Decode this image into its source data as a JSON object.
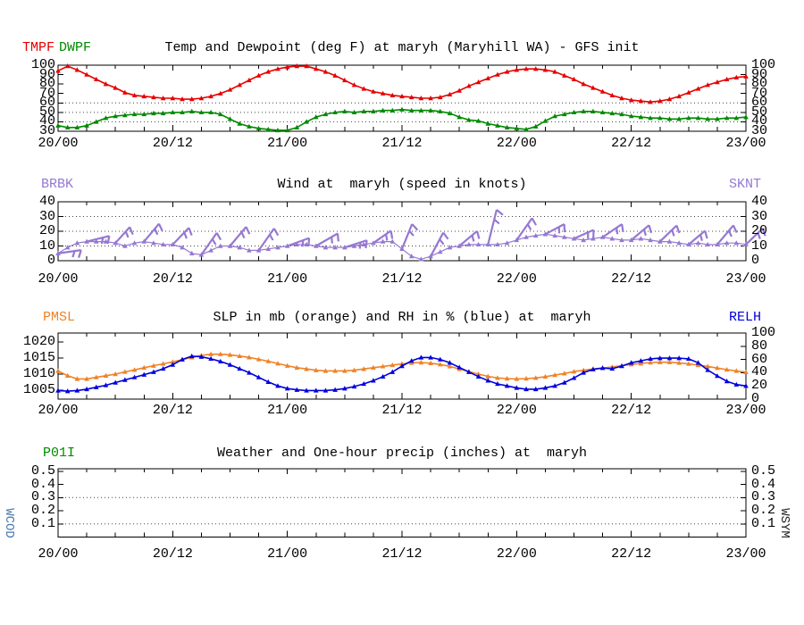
{
  "colors": {
    "tmpf": "#e60000",
    "dwpf": "#008a00",
    "wind": "#9678d2",
    "pmsl": "#f08228",
    "relh": "#0000dd",
    "wcod": "#4477aa",
    "wsym": "#222222",
    "axis": "#000000"
  },
  "x_axis": {
    "labels": [
      "20/00",
      "20/12",
      "21/00",
      "21/12",
      "22/00",
      "22/12",
      "23/00"
    ],
    "hours_total": 72,
    "minor_tick_hours": 3,
    "points_every_hours": 1
  },
  "side_labels": {
    "left": "WCOD",
    "right": "WSYM"
  },
  "chart_data": [
    {
      "type": "line",
      "panel": "temp_dew",
      "title": "Temp and Dewpoint (deg F) at maryh (Maryhill WA) - GFS init",
      "ylim": [
        30,
        100
      ],
      "yticks": [
        100,
        90,
        80,
        70,
        60,
        50,
        40,
        30
      ],
      "grid_dotted_at": [
        60,
        50,
        40
      ],
      "series": [
        {
          "name": "TMPF",
          "color_key": "tmpf",
          "values": [
            94,
            99,
            95,
            90,
            85,
            80,
            76,
            71,
            68,
            67,
            66,
            65,
            65,
            64,
            64,
            65,
            67,
            70,
            74,
            79,
            84,
            89,
            93,
            96,
            98,
            99,
            99,
            96,
            93,
            89,
            84,
            79,
            75,
            72,
            70,
            68,
            67,
            66,
            65,
            65,
            66,
            69,
            73,
            78,
            82,
            86,
            90,
            93,
            95,
            96,
            96,
            95,
            93,
            89,
            85,
            80,
            76,
            72,
            68,
            65,
            63,
            62,
            61,
            62,
            64,
            67,
            71,
            75,
            79,
            82,
            85,
            87,
            88
          ]
        },
        {
          "name": "DWPF",
          "color_key": "dwpf",
          "values": [
            36,
            34,
            34,
            36,
            40,
            44,
            46,
            47,
            48,
            48,
            49,
            49,
            50,
            50,
            51,
            50,
            50,
            48,
            43,
            38,
            35,
            33,
            32,
            31,
            31,
            34,
            40,
            45,
            48,
            50,
            51,
            50,
            51,
            51,
            52,
            52,
            53,
            52,
            52,
            52,
            51,
            49,
            45,
            42,
            41,
            38,
            36,
            34,
            33,
            32,
            35,
            41,
            46,
            48,
            50,
            51,
            51,
            50,
            49,
            48,
            46,
            45,
            44,
            44,
            43,
            43,
            44,
            44,
            43,
            43,
            44,
            44,
            45
          ]
        }
      ]
    },
    {
      "type": "line",
      "panel": "wind",
      "title": "Wind at  maryh (speed in knots)",
      "left_label": "BRBK",
      "right_label": "SKNT",
      "ylim": [
        0,
        40
      ],
      "yticks": [
        40,
        30,
        20,
        10,
        0
      ],
      "grid_dotted_at": [
        30,
        20,
        10
      ],
      "series": [
        {
          "name": "SKNT",
          "color_key": "wind",
          "values": [
            5,
            9,
            12,
            13,
            13,
            13,
            12,
            10,
            12,
            13,
            12,
            11,
            11,
            9,
            5,
            4,
            7,
            10,
            10,
            9,
            7,
            7,
            8,
            9,
            10,
            11,
            11,
            10,
            9,
            9,
            9,
            10,
            11,
            12,
            13,
            13,
            8,
            3,
            1,
            3,
            6,
            9,
            10,
            11,
            11,
            11,
            11,
            12,
            14,
            16,
            17,
            18,
            17,
            16,
            15,
            14,
            15,
            16,
            15,
            14,
            14,
            15,
            14,
            13,
            13,
            12,
            11,
            12,
            11,
            11,
            12,
            12,
            11
          ]
        }
      ],
      "barbs": [
        {
          "h": 0,
          "len": 26,
          "ang": 8
        },
        {
          "h": 3,
          "len": 26,
          "ang": 14
        },
        {
          "h": 6,
          "len": 24,
          "ang": 48
        },
        {
          "h": 9,
          "len": 26,
          "ang": 50
        },
        {
          "h": 12,
          "len": 26,
          "ang": 46
        },
        {
          "h": 15,
          "len": 30,
          "ang": 55
        },
        {
          "h": 18,
          "len": 28,
          "ang": 50
        },
        {
          "h": 21,
          "len": 30,
          "ang": 55
        },
        {
          "h": 24,
          "len": 26,
          "ang": 20
        },
        {
          "h": 27,
          "len": 28,
          "ang": 30
        },
        {
          "h": 30,
          "len": 26,
          "ang": 18
        },
        {
          "h": 33,
          "len": 24,
          "ang": 35
        },
        {
          "h": 36,
          "len": 30,
          "ang": 68
        },
        {
          "h": 39,
          "len": 30,
          "ang": 62
        },
        {
          "h": 42,
          "len": 26,
          "ang": 40
        },
        {
          "h": 45,
          "len": 40,
          "ang": 76
        },
        {
          "h": 48,
          "len": 30,
          "ang": 55
        },
        {
          "h": 51,
          "len": 24,
          "ang": 28
        },
        {
          "h": 54,
          "len": 24,
          "ang": 24
        },
        {
          "h": 57,
          "len": 26,
          "ang": 34
        },
        {
          "h": 60,
          "len": 26,
          "ang": 40
        },
        {
          "h": 63,
          "len": 26,
          "ang": 44
        },
        {
          "h": 66,
          "len": 24,
          "ang": 40
        },
        {
          "h": 69,
          "len": 28,
          "ang": 50
        },
        {
          "h": 72,
          "len": 26,
          "ang": 44
        }
      ]
    },
    {
      "type": "line",
      "panel": "slp_rh",
      "title": "SLP in mb (orange) and RH in % (blue) at  maryh",
      "left_label": "PMSL",
      "right_label": "RELH",
      "ylim_left": [
        1002.5,
        1022.5
      ],
      "ylim_right": [
        0,
        100
      ],
      "yticks_left": [
        1020,
        1015,
        1010,
        1005
      ],
      "yticks_right": [
        100,
        80,
        60,
        40,
        20,
        0
      ],
      "series": [
        {
          "name": "PMSL",
          "axis": "left",
          "color_key": "pmsl",
          "values": [
            1011,
            1009.5,
            1008.5,
            1008.5,
            1009,
            1009.5,
            1010,
            1010.7,
            1011.3,
            1012,
            1012.6,
            1013.2,
            1013.8,
            1014.5,
            1015.2,
            1015.8,
            1016.2,
            1016.2,
            1016,
            1015.6,
            1015.2,
            1014.6,
            1014,
            1013.3,
            1012.6,
            1012,
            1011.6,
            1011.2,
            1011,
            1011,
            1011,
            1011.2,
            1011.6,
            1012,
            1012.4,
            1012.8,
            1013.2,
            1013.5,
            1013.6,
            1013.4,
            1013,
            1012.4,
            1011.6,
            1010.8,
            1010,
            1009.3,
            1008.8,
            1008.6,
            1008.5,
            1008.6,
            1008.8,
            1009.2,
            1009.7,
            1010.2,
            1010.8,
            1011.2,
            1011.6,
            1011.9,
            1012.2,
            1012.6,
            1013,
            1013.3,
            1013.6,
            1013.7,
            1013.7,
            1013.5,
            1013.2,
            1012.8,
            1012.4,
            1011.9,
            1011.4,
            1011,
            1010.6
          ]
        },
        {
          "name": "RELH",
          "axis": "right",
          "color_key": "relh",
          "values": [
            13,
            12,
            13,
            15,
            18,
            21,
            25,
            29,
            33,
            37,
            41,
            46,
            52,
            60,
            65,
            64,
            61,
            57,
            52,
            46,
            40,
            33,
            26,
            20,
            16,
            14,
            13,
            13,
            13,
            14,
            16,
            19,
            23,
            28,
            34,
            41,
            50,
            58,
            63,
            63,
            60,
            55,
            48,
            41,
            34,
            28,
            23,
            20,
            17,
            15,
            15,
            17,
            20,
            25,
            32,
            40,
            45,
            47,
            46,
            50,
            55,
            58,
            61,
            62,
            62,
            62,
            61,
            55,
            44,
            35,
            27,
            22,
            20
          ]
        }
      ]
    },
    {
      "type": "line",
      "panel": "precip",
      "title": "Weather and One-hour precip (inches) at  maryh",
      "left_label": "P01I",
      "ylim": [
        0,
        0.52
      ],
      "yticks": [
        0.5,
        0.4,
        0.3,
        0.2,
        0.1
      ],
      "grid_dotted_at": [
        0.3,
        0.1
      ],
      "series": []
    }
  ]
}
